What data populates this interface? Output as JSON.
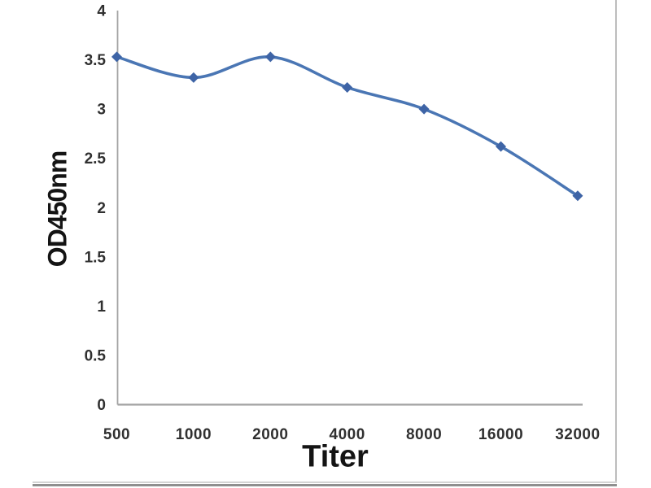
{
  "chart_data": {
    "type": "line",
    "title": "",
    "xlabel": "Titer",
    "ylabel": "OD450nm",
    "categories": [
      "500",
      "1000",
      "2000",
      "4000",
      "8000",
      "16000",
      "32000"
    ],
    "series": [
      {
        "name": "OD450nm",
        "values": [
          3.53,
          3.32,
          3.53,
          3.22,
          3.0,
          2.62,
          2.12
        ]
      }
    ],
    "ylim": [
      0,
      4
    ],
    "ytick_step": 0.5,
    "ytick_labels": [
      "0",
      "0.5",
      "1",
      "1.5",
      "2",
      "2.5",
      "3",
      "3.5",
      "4"
    ],
    "grid": false,
    "legend": false,
    "marker": "diamond",
    "colors": {
      "line": "#4a76b4",
      "marker": "#3e64a6",
      "axis": "#a3a3a3",
      "tick_text": "#303030",
      "title_text": "#141414",
      "frame": "#bdbdbd"
    }
  }
}
